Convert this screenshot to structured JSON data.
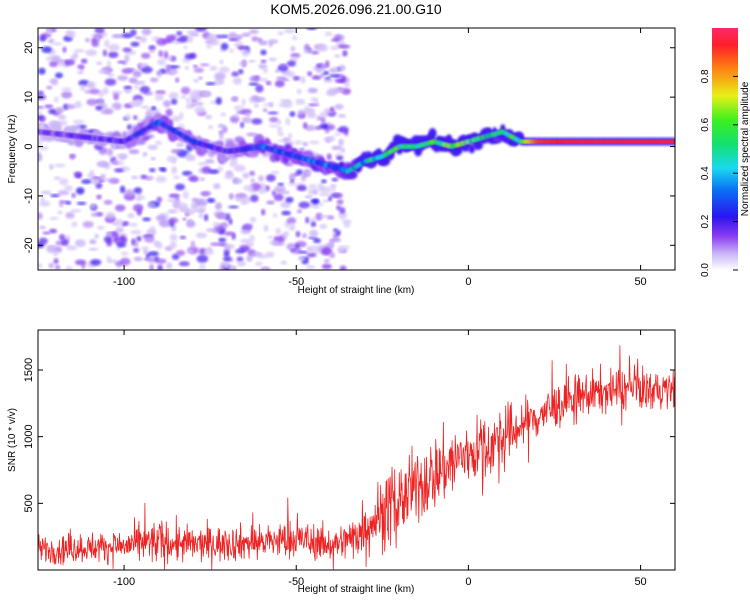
{
  "title": "KOM5.2026.096.21.00.G10",
  "colors": {
    "snr_line": "#ee2222",
    "axis": "#000000",
    "background": "#ffffff"
  },
  "chart_data": [
    {
      "type": "heatmap",
      "title": "KOM5.2026.096.21.00.G10",
      "xlabel": "Height of straight line (km)",
      "ylabel": "Frequency (Hz)",
      "xlim": [
        -125,
        60
      ],
      "ylim": [
        -25,
        24
      ],
      "xticks": [
        -100,
        -50,
        0,
        50
      ],
      "yticks": [
        -20,
        -10,
        0,
        10,
        20
      ],
      "grid": false,
      "colorbar": {
        "label": "Normalized spectral amplitude",
        "range": [
          0,
          1
        ],
        "ticks": [
          "0.0",
          "0.2",
          "0.4",
          "0.6",
          "0.8"
        ],
        "tick_values": [
          0,
          0.2,
          0.4,
          0.6,
          0.8
        ]
      },
      "ridge": {
        "description": "dominant frequency ridge",
        "x": [
          -125,
          -100,
          -90,
          -80,
          -70,
          -60,
          -50,
          -40,
          -35,
          -30,
          -25,
          -20,
          -15,
          -10,
          -5,
          0,
          5,
          10,
          15,
          20,
          30,
          40,
          50,
          60
        ],
        "freq": [
          3,
          1,
          5,
          1,
          -1,
          0,
          -2,
          -4,
          -5,
          -3,
          -2,
          0,
          0,
          1,
          0,
          1,
          2,
          3,
          1,
          1,
          1,
          1,
          1,
          1
        ],
        "amplitude": [
          0.15,
          0.2,
          0.3,
          0.25,
          0.2,
          0.3,
          0.3,
          0.35,
          0.45,
          0.5,
          0.55,
          0.6,
          0.55,
          0.55,
          0.65,
          0.6,
          0.55,
          0.5,
          0.6,
          0.9,
          0.95,
          0.95,
          0.95,
          0.95
        ]
      },
      "noise_region": {
        "x_range": [
          -125,
          -35
        ],
        "freq_range": [
          -25,
          24
        ]
      }
    },
    {
      "type": "line",
      "xlabel": "Height of straight line (km)",
      "ylabel": "SNR (10 * v/v)",
      "xlim": [
        -125,
        60
      ],
      "ylim": [
        0,
        1800
      ],
      "xticks": [
        -100,
        -50,
        0,
        50
      ],
      "yticks": [
        500,
        1000,
        1500
      ],
      "grid": false,
      "series": [
        {
          "name": "SNR",
          "x": [
            -125,
            -110,
            -100,
            -90,
            -80,
            -70,
            -60,
            -50,
            -40,
            -35,
            -30,
            -25,
            -20,
            -15,
            -10,
            -5,
            0,
            5,
            10,
            15,
            20,
            25,
            30,
            35,
            40,
            45,
            50,
            55,
            60
          ],
          "mean": [
            150,
            170,
            180,
            210,
            190,
            200,
            210,
            230,
            190,
            220,
            330,
            430,
            520,
            620,
            720,
            800,
            880,
            920,
            980,
            1080,
            1150,
            1220,
            1280,
            1320,
            1340,
            1350,
            1360,
            1340,
            1350
          ],
          "spread": [
            90,
            90,
            100,
            140,
            110,
            110,
            110,
            120,
            100,
            120,
            180,
            220,
            230,
            230,
            230,
            230,
            200,
            200,
            200,
            160,
            150,
            140,
            140,
            140,
            130,
            130,
            130,
            120,
            120
          ]
        }
      ]
    }
  ]
}
